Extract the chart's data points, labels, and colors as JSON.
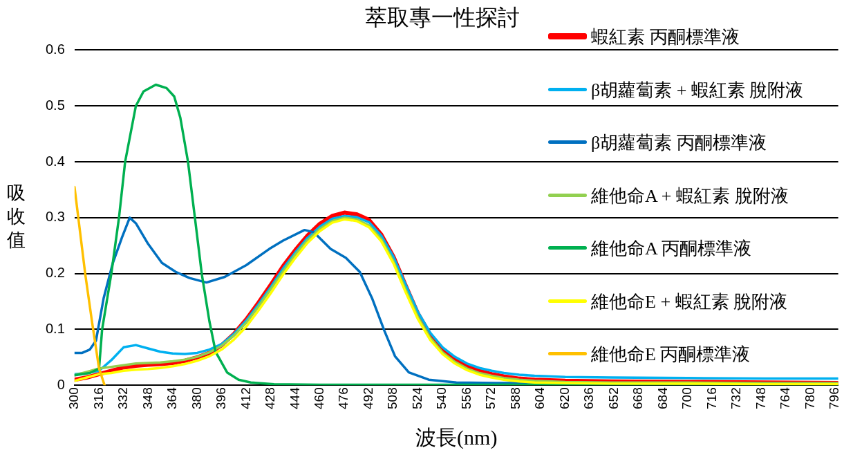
{
  "chart_data": {
    "type": "line",
    "title": "萃取專一性探討",
    "xlabel": "波長(nm)",
    "ylabel": "吸收值",
    "xlim": [
      300,
      798
    ],
    "xticks": [
      300,
      316,
      332,
      348,
      364,
      380,
      396,
      412,
      428,
      444,
      460,
      476,
      492,
      508,
      524,
      540,
      556,
      572,
      588,
      604,
      620,
      636,
      652,
      668,
      684,
      700,
      716,
      732,
      748,
      764,
      780,
      796
    ],
    "ylim": [
      0,
      0.6
    ],
    "yticks": [
      0,
      0.1,
      0.2,
      0.3,
      0.4,
      0.5,
      0.6
    ],
    "grid": "y",
    "legend": "top right",
    "marker": "none",
    "line_style": "solid",
    "x": [
      300,
      308,
      316,
      324,
      332,
      340,
      348,
      356,
      364,
      372,
      380,
      388,
      396,
      404,
      412,
      420,
      428,
      436,
      444,
      452,
      460,
      468,
      476,
      484,
      492,
      500,
      508,
      516,
      524,
      532,
      540,
      548,
      556,
      564,
      572,
      580,
      590,
      600,
      620,
      650,
      700,
      750,
      798
    ],
    "series": [
      {
        "name": "蝦紅素 丙酮標準液",
        "color": "#ff0000",
        "values": [
          0.01,
          0.014,
          0.02,
          0.026,
          0.032,
          0.035,
          0.037,
          0.038,
          0.04,
          0.044,
          0.05,
          0.058,
          0.072,
          0.092,
          0.118,
          0.148,
          0.18,
          0.213,
          0.242,
          0.268,
          0.289,
          0.303,
          0.309,
          0.306,
          0.296,
          0.27,
          0.23,
          0.178,
          0.128,
          0.09,
          0.064,
          0.046,
          0.034,
          0.026,
          0.02,
          0.016,
          0.012,
          0.01,
          0.008,
          0.007,
          0.006,
          0.005,
          0.004
        ]
      },
      {
        "name": "β胡蘿蔔素 + 蝦紅素 脫附液",
        "color": "#00b0f0",
        "values": [
          0.02,
          0.022,
          0.026,
          0.045,
          0.068,
          0.072,
          0.066,
          0.06,
          0.057,
          0.056,
          0.058,
          0.064,
          0.074,
          0.092,
          0.116,
          0.145,
          0.176,
          0.209,
          0.238,
          0.264,
          0.284,
          0.298,
          0.303,
          0.301,
          0.292,
          0.268,
          0.23,
          0.18,
          0.131,
          0.094,
          0.068,
          0.051,
          0.039,
          0.031,
          0.026,
          0.022,
          0.019,
          0.017,
          0.015,
          0.014,
          0.013,
          0.012,
          0.012
        ]
      },
      {
        "name": "β胡蘿蔔素 丙酮標準液",
        "color": "#0070c0",
        "x": [
          300,
          305,
          310,
          314,
          319,
          325,
          331,
          336,
          340,
          348,
          357,
          366,
          375,
          386,
          398,
          412,
          427,
          436,
          450,
          456,
          467,
          477,
          486,
          494,
          502,
          509,
          518,
          531,
          549,
          575,
          600
        ],
        "values": [
          0.058,
          0.058,
          0.064,
          0.08,
          0.156,
          0.219,
          0.265,
          0.3,
          0.29,
          0.253,
          0.219,
          0.203,
          0.192,
          0.184,
          0.194,
          0.215,
          0.244,
          0.259,
          0.278,
          0.274,
          0.244,
          0.228,
          0.203,
          0.156,
          0.098,
          0.052,
          0.023,
          0.01,
          0.005,
          0.004,
          0.004
        ]
      },
      {
        "name": "維他命A + 蝦紅素 脫附液",
        "color": "#92d050",
        "values": [
          0.018,
          0.024,
          0.03,
          0.033,
          0.036,
          0.039,
          0.04,
          0.041,
          0.043,
          0.046,
          0.051,
          0.059,
          0.071,
          0.089,
          0.112,
          0.141,
          0.172,
          0.204,
          0.234,
          0.26,
          0.28,
          0.294,
          0.3,
          0.297,
          0.286,
          0.262,
          0.222,
          0.171,
          0.122,
          0.085,
          0.059,
          0.042,
          0.03,
          0.022,
          0.017,
          0.013,
          0.01,
          0.008,
          0.006,
          0.005,
          0.005,
          0.004,
          0.004
        ]
      },
      {
        "name": "維他命A 丙酮標準液",
        "color": "#00b050",
        "x": [
          300,
          310,
          316,
          318,
          324,
          329,
          333,
          340,
          345,
          353,
          360,
          365,
          369,
          374,
          378.5,
          383,
          388,
          392,
          399.5,
          407,
          415,
          430,
          460,
          600,
          798
        ],
        "values": [
          0.018,
          0.022,
          0.03,
          0.1,
          0.2,
          0.3,
          0.4,
          0.5,
          0.526,
          0.538,
          0.532,
          0.517,
          0.479,
          0.4,
          0.3,
          0.199,
          0.114,
          0.06,
          0.023,
          0.01,
          0.005,
          0.002,
          0.001,
          0.001,
          0.001
        ]
      },
      {
        "name": "維他命E + 蝦紅素 脫附液",
        "color": "#ffff00",
        "values": [
          0.008,
          0.014,
          0.02,
          0.022,
          0.026,
          0.028,
          0.029,
          0.031,
          0.034,
          0.038,
          0.044,
          0.052,
          0.064,
          0.082,
          0.105,
          0.134,
          0.165,
          0.198,
          0.228,
          0.255,
          0.276,
          0.291,
          0.297,
          0.294,
          0.283,
          0.258,
          0.218,
          0.166,
          0.118,
          0.081,
          0.056,
          0.039,
          0.027,
          0.019,
          0.014,
          0.01,
          0.007,
          0.005,
          0.004,
          0.003,
          0.003,
          0.002,
          0.002
        ]
      },
      {
        "name": "維他命E 丙酮標準液",
        "color": "#ffc000",
        "x": [
          300,
          307,
          311.4,
          316,
          319.6
        ],
        "values": [
          0.355,
          0.199,
          0.114,
          0.03,
          0
        ]
      }
    ]
  }
}
